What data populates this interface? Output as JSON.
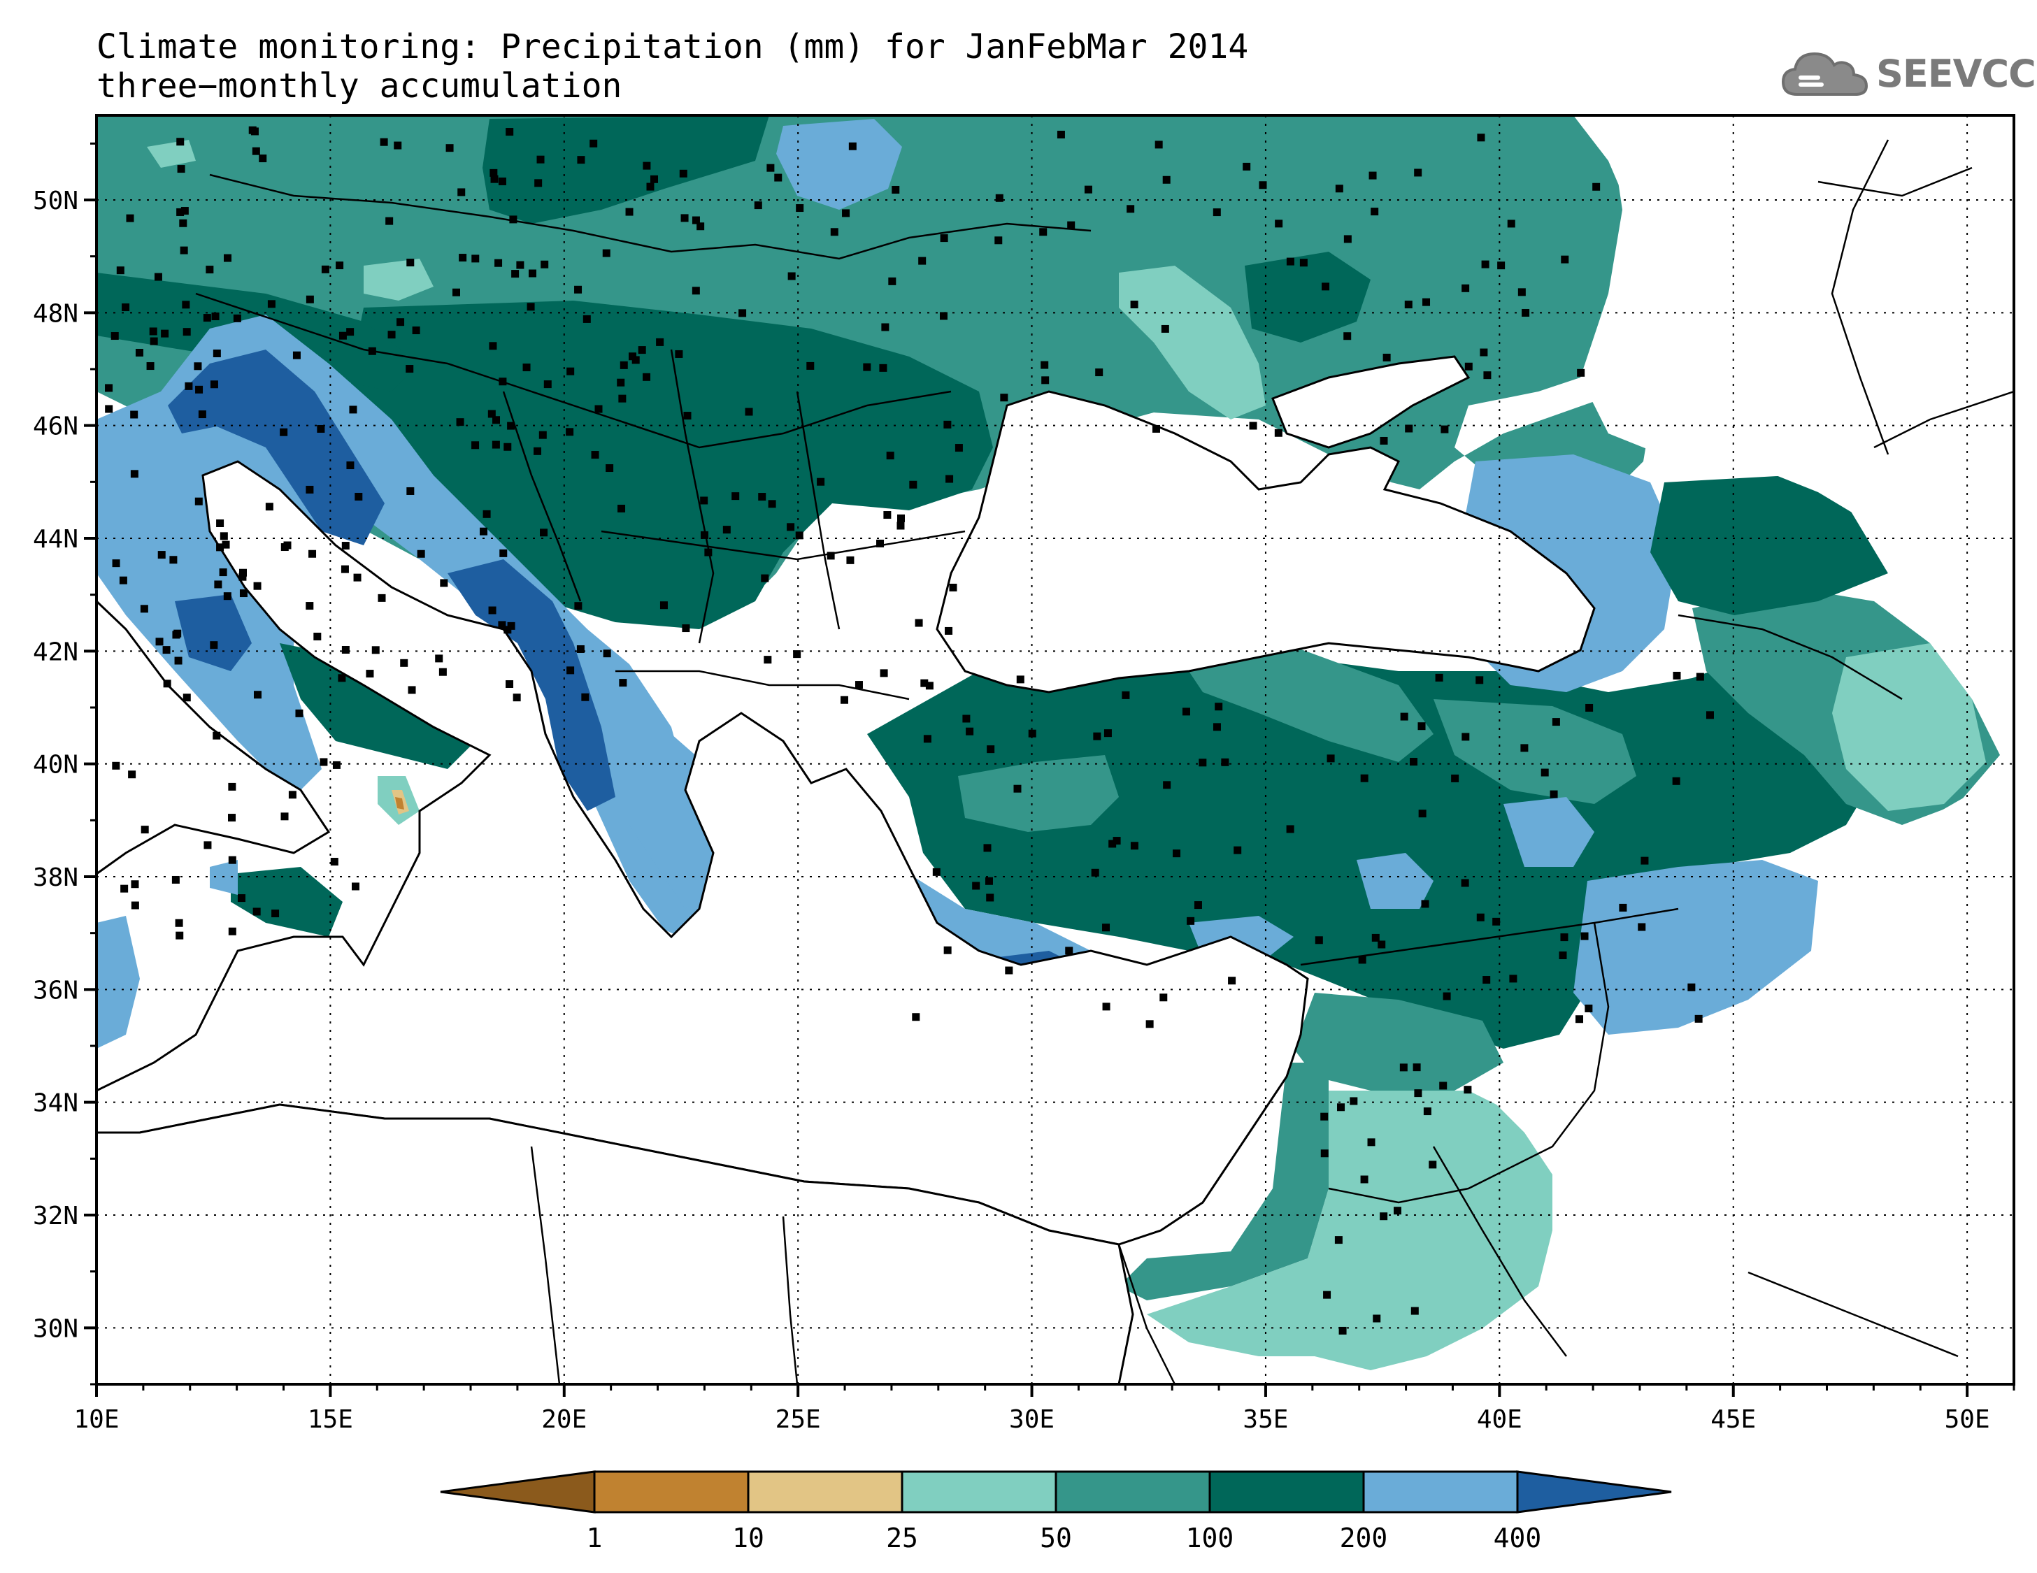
{
  "title": "Climate monitoring: Precipitation (mm) for JanFebMar 2014",
  "subtitle": "three−monthly accumulation",
  "logo": {
    "text": "SEEVCCC",
    "icon": "cloud-icon"
  },
  "map": {
    "lon_range": [
      10,
      51
    ],
    "lat_range": [
      29,
      51.5
    ],
    "lon_ticks": [
      "10E",
      "15E",
      "20E",
      "25E",
      "30E",
      "35E",
      "40E",
      "45E",
      "50E"
    ],
    "lat_ticks": [
      "30N",
      "32N",
      "34N",
      "36N",
      "38N",
      "40N",
      "42N",
      "44N",
      "46N",
      "48N",
      "50N"
    ],
    "grid": "dotted"
  },
  "colorbar": {
    "labels": [
      "1",
      "10",
      "25",
      "50",
      "100",
      "200",
      "400"
    ],
    "colors": [
      "#8b5a1c",
      "#c08230",
      "#e2c585",
      "#80cfc0",
      "#35968a",
      "#006759",
      "#6aacd8",
      "#1e5ea0"
    ]
  }
}
